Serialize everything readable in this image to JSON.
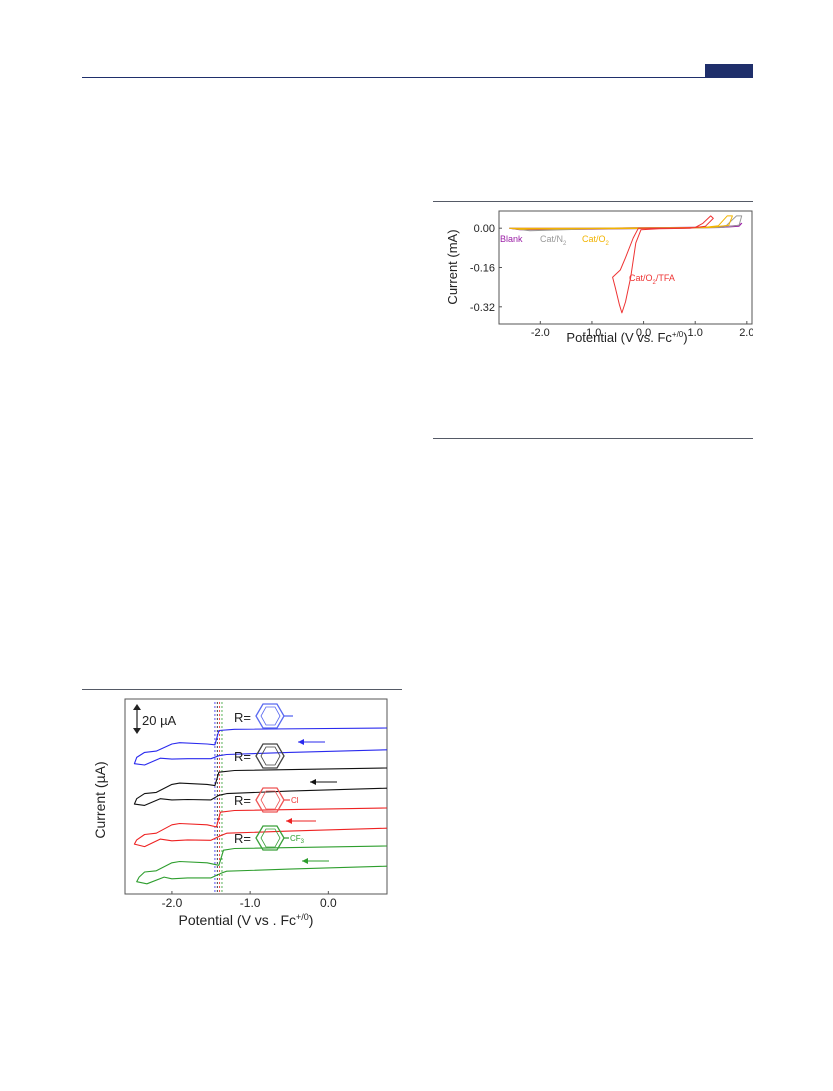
{
  "chart_data": [
    {
      "type": "line",
      "title": "",
      "xlabel": "Potential (V vs. Fc",
      "xlabel_sup": "+/0",
      "xlabel_close": ")",
      "ylabel": "Current (mA)",
      "xlim": [
        -2.8,
        2.1
      ],
      "ylim": [
        -0.39,
        0.07
      ],
      "xticks": [
        "-2.0",
        "-1.0",
        "0.0",
        "1.0",
        "2.0"
      ],
      "yticks": [
        "0.00",
        "-0.16",
        "-0.32"
      ],
      "series": [
        {
          "name": "Blank",
          "color": "#9b1fa6",
          "points": [
            [
              -2.6,
              0.0
            ],
            [
              -1.0,
              0.0
            ],
            [
              0.0,
              0.002
            ],
            [
              1.0,
              0.004
            ],
            [
              1.55,
              0.006
            ],
            [
              1.85,
              0.012
            ],
            [
              1.9,
              0.02
            ],
            [
              1.85,
              0.008
            ],
            [
              1.5,
              0.003
            ],
            [
              0.5,
              0.0
            ],
            [
              -1.0,
              -0.004
            ],
            [
              -2.4,
              -0.006
            ],
            [
              -2.6,
              0.0
            ]
          ]
        },
        {
          "name": "Cat/N",
          "sub": "2",
          "color": "#999999",
          "points": [
            [
              -2.6,
              0.0
            ],
            [
              -2.2,
              -0.002
            ],
            [
              -1.0,
              0.0
            ],
            [
              0.5,
              0.002
            ],
            [
              1.3,
              0.004
            ],
            [
              1.6,
              0.01
            ],
            [
              1.8,
              0.05
            ],
            [
              1.9,
              0.05
            ],
            [
              1.85,
              0.012
            ],
            [
              1.5,
              0.003
            ],
            [
              0.5,
              -0.001
            ],
            [
              -1.0,
              -0.003
            ],
            [
              -2.2,
              -0.01
            ],
            [
              -2.6,
              0.0
            ]
          ]
        },
        {
          "name": "Cat/O",
          "sub": "2",
          "color": "#f2b400",
          "points": [
            [
              -2.6,
              0.0
            ],
            [
              -1.0,
              0.0
            ],
            [
              0.5,
              0.002
            ],
            [
              1.2,
              0.004
            ],
            [
              1.45,
              0.01
            ],
            [
              1.62,
              0.05
            ],
            [
              1.72,
              0.05
            ],
            [
              1.65,
              0.012
            ],
            [
              1.3,
              0.003
            ],
            [
              0.5,
              -0.001
            ],
            [
              -1.0,
              -0.002
            ],
            [
              -2.4,
              -0.004
            ],
            [
              -2.6,
              0.0
            ]
          ]
        },
        {
          "name": "Cat/O",
          "sub": "2",
          "suffix": "/TFA",
          "color": "#ee3333",
          "points": [
            [
              -0.1,
              0.0
            ],
            [
              0.5,
              0.0
            ],
            [
              1.0,
              0.003
            ],
            [
              1.15,
              0.02
            ],
            [
              1.3,
              0.05
            ],
            [
              1.35,
              0.04
            ],
            [
              1.2,
              0.008
            ],
            [
              0.9,
              0.0
            ],
            [
              0.3,
              -0.002
            ],
            [
              -0.05,
              -0.006
            ],
            [
              -0.15,
              -0.06
            ],
            [
              -0.25,
              -0.2
            ],
            [
              -0.35,
              -0.3
            ],
            [
              -0.42,
              -0.345
            ],
            [
              -0.47,
              -0.31
            ],
            [
              -0.55,
              -0.24
            ],
            [
              -0.6,
              -0.2
            ],
            [
              -0.45,
              -0.17
            ],
            [
              -0.35,
              -0.12
            ],
            [
              -0.2,
              -0.04
            ],
            [
              -0.1,
              0.0
            ]
          ]
        }
      ],
      "annotations": [
        "Blank",
        "Cat/N",
        "2",
        "Cat/O",
        "2",
        "Cat/O",
        "2",
        "/TFA"
      ]
    },
    {
      "type": "line",
      "title": "",
      "xlabel": "Potential (V vs . Fc",
      "xlabel_sup": "+/0",
      "xlabel_close": ")",
      "ylabel": "Current (µA)",
      "scale_bar": "20 µA",
      "xlim": [
        -2.6,
        0.75
      ],
      "xticks": [
        "-2.0",
        "-1.0",
        "0.0"
      ],
      "series": [
        {
          "name": "R=",
          "substituent": "",
          "color": "#2a2aee",
          "offset": 3,
          "points": [
            [
              0.75,
              0.0
            ],
            [
              -1.2,
              -0.3
            ],
            [
              -1.4,
              -0.6
            ],
            [
              -1.45,
              -4.0
            ],
            [
              -1.55,
              -3.8
            ],
            [
              -1.9,
              -3.5
            ],
            [
              -2.0,
              -3.8
            ],
            [
              -2.2,
              -5.5
            ],
            [
              -2.35,
              -5.8
            ],
            [
              -2.45,
              -7.0
            ],
            [
              -2.48,
              -8.5
            ],
            [
              -2.35,
              -8.8
            ],
            [
              -2.15,
              -7.2
            ],
            [
              -2.0,
              -7.4
            ],
            [
              -1.8,
              -7.3
            ],
            [
              -1.5,
              -7.3
            ],
            [
              -1.4,
              -6.6
            ],
            [
              -1.3,
              -6.3
            ],
            [
              -0.5,
              -5.8
            ],
            [
              0.75,
              -5.2
            ]
          ]
        },
        {
          "name": "R=",
          "substituent": "",
          "color": "#111111",
          "offset": 2,
          "points": [
            [
              0.75,
              0.0
            ],
            [
              -1.2,
              -0.6
            ],
            [
              -1.4,
              -1.0
            ],
            [
              -1.45,
              -4.2
            ],
            [
              -1.55,
              -3.9
            ],
            [
              -1.9,
              -3.6
            ],
            [
              -2.0,
              -3.9
            ],
            [
              -2.2,
              -5.8
            ],
            [
              -2.35,
              -6.1
            ],
            [
              -2.45,
              -7.3
            ],
            [
              -2.48,
              -8.6
            ],
            [
              -2.35,
              -8.9
            ],
            [
              -2.15,
              -7.3
            ],
            [
              -2.0,
              -7.6
            ],
            [
              -1.8,
              -7.5
            ],
            [
              -1.5,
              -7.6
            ],
            [
              -1.4,
              -6.5
            ],
            [
              -1.3,
              -6.1
            ],
            [
              -0.5,
              -5.5
            ],
            [
              0.75,
              -4.8
            ]
          ]
        },
        {
          "name": "R=",
          "substituent": "Cl",
          "color": "#ee2222",
          "offset": 1,
          "points": [
            [
              0.75,
              0.0
            ],
            [
              -1.2,
              -0.6
            ],
            [
              -1.38,
              -1.0
            ],
            [
              -1.43,
              -4.5
            ],
            [
              -1.55,
              -4.0
            ],
            [
              -1.9,
              -3.7
            ],
            [
              -2.0,
              -4.0
            ],
            [
              -2.2,
              -6.0
            ],
            [
              -2.35,
              -6.3
            ],
            [
              -2.45,
              -7.6
            ],
            [
              -2.48,
              -8.6
            ],
            [
              -2.35,
              -9.2
            ],
            [
              -2.15,
              -7.4
            ],
            [
              -2.0,
              -7.8
            ],
            [
              -1.8,
              -7.6
            ],
            [
              -1.5,
              -7.7
            ],
            [
              -1.38,
              -6.6
            ],
            [
              -1.3,
              -6.0
            ],
            [
              -0.5,
              -5.5
            ],
            [
              0.75,
              -4.8
            ]
          ]
        },
        {
          "name": "R=",
          "substituent": "CF",
          "substituent_sub": "3",
          "color": "#2e9e2e",
          "offset": 0,
          "points": [
            [
              0.75,
              0.0
            ],
            [
              -1.2,
              -0.6
            ],
            [
              -1.34,
              -1.0
            ],
            [
              -1.4,
              -4.6
            ],
            [
              -1.55,
              -4.0
            ],
            [
              -1.9,
              -3.7
            ],
            [
              -2.0,
              -4.0
            ],
            [
              -2.2,
              -5.9
            ],
            [
              -2.35,
              -6.2
            ],
            [
              -2.42,
              -7.4
            ],
            [
              -2.45,
              -8.5
            ],
            [
              -2.32,
              -9.0
            ],
            [
              -2.1,
              -7.4
            ],
            [
              -2.0,
              -7.8
            ],
            [
              -1.8,
              -7.6
            ],
            [
              -1.5,
              -7.6
            ],
            [
              -1.36,
              -6.4
            ],
            [
              -1.3,
              -6.0
            ],
            [
              -0.5,
              -5.5
            ],
            [
              0.75,
              -4.8
            ]
          ]
        }
      ],
      "reference_lines": [
        -1.45,
        -1.42,
        -1.39,
        -1.36
      ]
    }
  ]
}
